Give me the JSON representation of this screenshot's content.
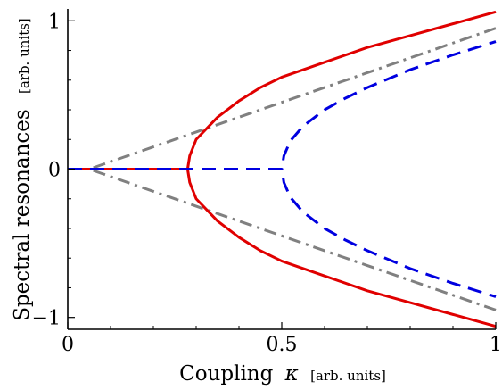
{
  "chart_data": {
    "type": "line",
    "xlabel": "Coupling",
    "xlabel_symbol": "κ",
    "xlabel_unit": "[arb. units]",
    "ylabel": "Spectral resonances",
    "ylabel_unit": "[arb. units]",
    "xlim": [
      0,
      1
    ],
    "ylim": [
      -1.08,
      1.08
    ],
    "x_ticks": [
      {
        "value": 0,
        "label": "0"
      },
      {
        "value": 0.5,
        "label": "0.5"
      },
      {
        "value": 1,
        "label": "1"
      }
    ],
    "y_ticks": [
      {
        "value": 1,
        "label": "1"
      },
      {
        "value": 0,
        "label": "0"
      },
      {
        "value": -1,
        "label": "−1"
      }
    ],
    "x_minor_ticks": [
      0.1,
      0.2,
      0.3,
      0.4,
      0.6,
      0.7,
      0.8,
      0.9
    ],
    "y_minor_ticks": [
      -0.8,
      -0.6,
      -0.4,
      -0.2,
      0.2,
      0.4,
      0.6,
      0.8
    ],
    "grid": false,
    "legend": "none",
    "series": [
      {
        "color": "#808080",
        "dash": "dashdot",
        "x": [
          0,
          0.05,
          0.08,
          0.1,
          0.2,
          0.3,
          0.4,
          0.5,
          0.6,
          0.7,
          0.8,
          0.9,
          1.0
        ],
        "upper": [
          0,
          0,
          0.03,
          0.05,
          0.15,
          0.25,
          0.35,
          0.45,
          0.55,
          0.65,
          0.75,
          0.85,
          0.95
        ],
        "lower": [
          0,
          0,
          -0.03,
          -0.05,
          -0.15,
          -0.25,
          -0.35,
          -0.45,
          -0.55,
          -0.65,
          -0.75,
          -0.85,
          -0.95
        ]
      },
      {
        "color": "#e00000",
        "dash": "solid",
        "x": [
          0,
          0.28,
          0.285,
          0.3,
          0.35,
          0.4,
          0.45,
          0.5,
          0.6,
          0.7,
          0.8,
          0.9,
          1.0
        ],
        "upper": [
          0,
          0,
          0.09,
          0.2,
          0.35,
          0.46,
          0.55,
          0.62,
          0.72,
          0.82,
          0.9,
          0.98,
          1.06
        ],
        "lower": [
          0,
          0,
          -0.09,
          -0.2,
          -0.35,
          -0.46,
          -0.55,
          -0.62,
          -0.72,
          -0.82,
          -0.9,
          -0.98,
          -1.06
        ]
      },
      {
        "color": "#0000e0",
        "dash": "dashed",
        "x": [
          0,
          0.5,
          0.505,
          0.52,
          0.55,
          0.6,
          0.65,
          0.7,
          0.8,
          0.9,
          1.0
        ],
        "upper": [
          0,
          0,
          0.09,
          0.19,
          0.29,
          0.4,
          0.48,
          0.55,
          0.67,
          0.77,
          0.86
        ],
        "lower": [
          0,
          0,
          -0.09,
          -0.19,
          -0.29,
          -0.4,
          -0.48,
          -0.55,
          -0.67,
          -0.77,
          -0.86
        ]
      }
    ]
  }
}
